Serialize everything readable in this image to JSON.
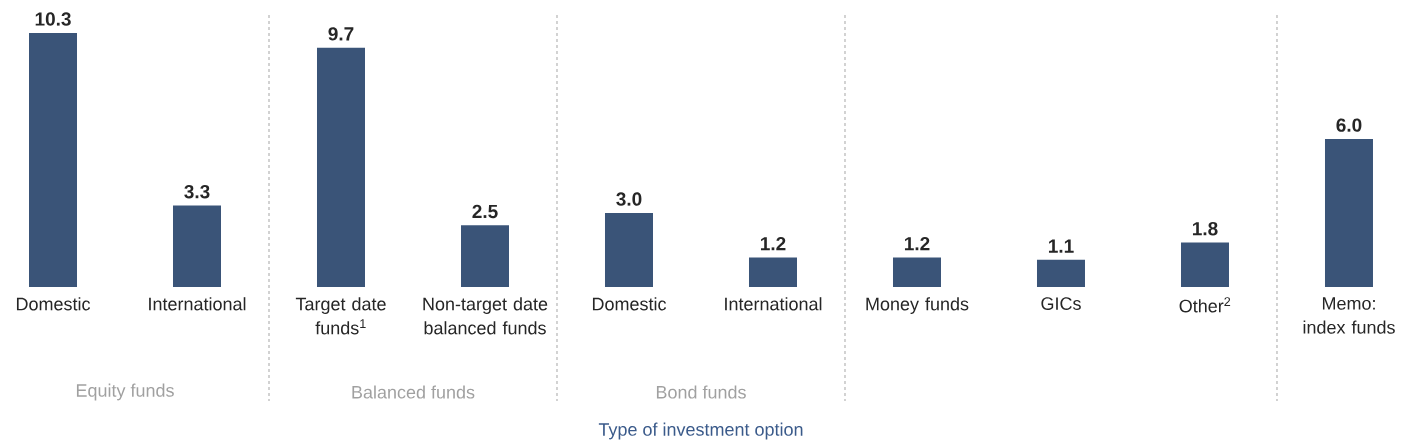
{
  "chart_data": {
    "type": "bar",
    "categories": [
      "Domestic",
      "International",
      "Target date funds$^{1}$",
      "Non-target date balanced funds",
      "Domestic",
      "International",
      "Money funds",
      "GICs",
      "Other$^{2}$",
      "Memo: index funds"
    ],
    "values": [
      10.3,
      3.3,
      9.7,
      2.5,
      3.0,
      1.2,
      1.2,
      1.1,
      1.8,
      6.0
    ],
    "color": "#3a5478",
    "value_labels": [
      "10.3",
      "3.3",
      "9.7",
      "2.5",
      "3.0",
      "1.2",
      "1.2",
      "1.1",
      "1.8",
      "6.0"
    ],
    "annotations": [
      "Equity funds",
      "Balanced funds",
      "Bond funds",
      "Type of investment option"
    ]
  }
}
